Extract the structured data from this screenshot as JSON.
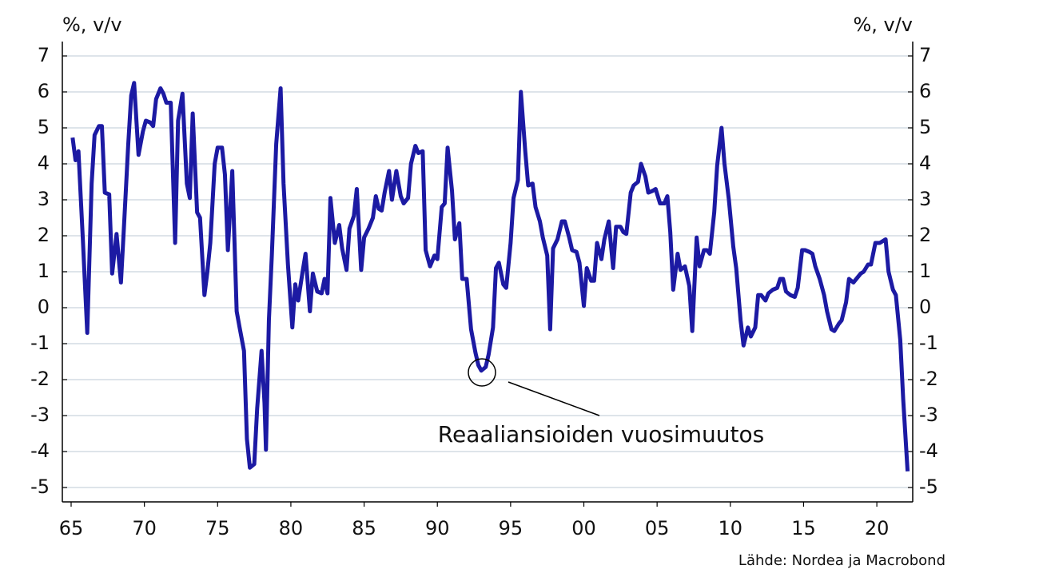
{
  "chart_data": {
    "type": "line",
    "y_label": "%, v/v",
    "y2_label": "%, v/v",
    "annotation": "Reaaliansioiden vuosimuutos",
    "source": "Lähde: Nordea ja Macrobond",
    "grid": true,
    "xlim": [
      1964.4,
      2022.45
    ],
    "ylim": [
      -5.4,
      7.4
    ],
    "y2lim": [
      -5.4,
      7.4
    ],
    "xticks": [
      {
        "value": 1965,
        "label": "65"
      },
      {
        "value": 1970,
        "label": "70"
      },
      {
        "value": 1975,
        "label": "75"
      },
      {
        "value": 1980,
        "label": "80"
      },
      {
        "value": 1985,
        "label": "85"
      },
      {
        "value": 1990,
        "label": "90"
      },
      {
        "value": 1995,
        "label": "95"
      },
      {
        "value": 2000,
        "label": "00"
      },
      {
        "value": 2005,
        "label": "05"
      },
      {
        "value": 2010,
        "label": "10"
      },
      {
        "value": 2015,
        "label": "15"
      },
      {
        "value": 2020,
        "label": "20"
      }
    ],
    "yticks": [
      -5,
      -4,
      -3,
      -2,
      -1,
      0,
      1,
      2,
      3,
      4,
      5,
      6,
      7
    ],
    "y2ticks": [
      -5,
      -4,
      -3,
      -2,
      -1,
      0,
      1,
      2,
      3,
      4,
      5,
      6,
      7
    ],
    "x": [
      1965.1,
      1965.3,
      1965.5,
      1965.8,
      1966.1,
      1966.4,
      1966.6,
      1966.9,
      1967.1,
      1967.3,
      1967.6,
      1967.8,
      1968.1,
      1968.4,
      1968.6,
      1968.9,
      1969.1,
      1969.3,
      1969.6,
      1969.9,
      1970.1,
      1970.4,
      1970.6,
      1970.8,
      1971.1,
      1971.3,
      1971.5,
      1971.8,
      1972.1,
      1972.3,
      1972.6,
      1972.9,
      1973.1,
      1973.3,
      1973.6,
      1973.8,
      1974.1,
      1974.3,
      1974.5,
      1974.8,
      1975.0,
      1975.3,
      1975.5,
      1975.7,
      1976.0,
      1976.3,
      1976.5,
      1976.8,
      1977.0,
      1977.2,
      1977.5,
      1977.7,
      1978.0,
      1978.2,
      1978.3,
      1978.5,
      1978.7,
      1979.0,
      1979.3,
      1979.5,
      1979.8,
      1980.1,
      1980.3,
      1980.5,
      1980.8,
      1981.0,
      1981.3,
      1981.5,
      1981.8,
      1982.1,
      1982.3,
      1982.5,
      1982.7,
      1983.0,
      1983.3,
      1983.5,
      1983.8,
      1984.0,
      1984.3,
      1984.5,
      1984.8,
      1985.0,
      1985.3,
      1985.6,
      1985.8,
      1986.0,
      1986.2,
      1986.4,
      1986.7,
      1986.9,
      1987.2,
      1987.5,
      1987.7,
      1988.0,
      1988.2,
      1988.5,
      1988.7,
      1989.0,
      1989.2,
      1989.5,
      1989.8,
      1990.0,
      1990.3,
      1990.5,
      1990.7,
      1991.0,
      1991.2,
      1991.5,
      1991.7,
      1992.0,
      1992.3,
      1992.6,
      1992.8,
      1993.0,
      1993.3,
      1993.5,
      1993.8,
      1994.0,
      1994.2,
      1994.5,
      1994.7,
      1995.0,
      1995.2,
      1995.5,
      1995.7,
      1996.0,
      1996.2,
      1996.5,
      1996.7,
      1997.0,
      1997.2,
      1997.5,
      1997.7,
      1997.9,
      1998.2,
      1998.5,
      1998.7,
      1999.0,
      1999.2,
      1999.5,
      1999.7,
      2000.0,
      2000.2,
      2000.5,
      2000.7,
      2000.9,
      2001.2,
      2001.4,
      2001.7,
      2002.0,
      2002.2,
      2002.5,
      2002.7,
      2002.9,
      2003.2,
      2003.4,
      2003.7,
      2003.9,
      2004.2,
      2004.4,
      2004.7,
      2004.9,
      2005.2,
      2005.5,
      2005.7,
      2005.9,
      2006.1,
      2006.4,
      2006.6,
      2006.9,
      2007.2,
      2007.4,
      2007.7,
      2007.9,
      2008.2,
      2008.4,
      2008.6,
      2008.9,
      2009.1,
      2009.4,
      2009.6,
      2009.9,
      2010.2,
      2010.4,
      2010.7,
      2010.9,
      2011.2,
      2011.4,
      2011.7,
      2011.9,
      2012.1,
      2012.4,
      2012.6,
      2012.9,
      2013.2,
      2013.4,
      2013.6,
      2013.8,
      2014.1,
      2014.4,
      2014.6,
      2014.9,
      2015.1,
      2015.4,
      2015.6,
      2015.8,
      2016.1,
      2016.4,
      2016.6,
      2016.9,
      2017.1,
      2017.4,
      2017.6,
      2017.9,
      2018.1,
      2018.4,
      2018.6,
      2018.9,
      2019.1,
      2019.4,
      2019.6,
      2019.9,
      2020.2,
      2020.4,
      2020.6,
      2020.8,
      2021.1,
      2021.3,
      2021.6,
      2021.8,
      2022.1
    ],
    "series": [
      {
        "color": "#1c1aa3",
        "values": [
          4.73,
          4.1,
          4.35,
          1.9,
          -0.7,
          3.45,
          4.8,
          5.05,
          5.05,
          3.2,
          3.15,
          0.95,
          2.05,
          0.7,
          2.2,
          4.55,
          5.9,
          6.25,
          4.25,
          4.9,
          5.2,
          5.15,
          5.05,
          5.8,
          6.1,
          5.95,
          5.7,
          5.7,
          1.8,
          5.2,
          5.95,
          3.45,
          3.05,
          5.4,
          2.65,
          2.5,
          0.35,
          1.0,
          1.8,
          4.0,
          4.45,
          4.45,
          3.7,
          1.6,
          3.8,
          -0.1,
          -0.55,
          -1.2,
          -3.65,
          -4.45,
          -4.35,
          -2.8,
          -1.2,
          -2.65,
          -3.95,
          -0.35,
          1.45,
          4.55,
          6.1,
          3.45,
          1.2,
          -0.55,
          0.65,
          0.2,
          1.0,
          1.5,
          -0.1,
          0.95,
          0.45,
          0.4,
          0.8,
          0.4,
          3.05,
          1.8,
          2.3,
          1.65,
          1.05,
          2.2,
          2.55,
          3.3,
          1.05,
          1.95,
          2.2,
          2.5,
          3.1,
          2.75,
          2.7,
          3.2,
          3.8,
          3.0,
          3.8,
          3.1,
          2.9,
          3.05,
          4.0,
          4.5,
          4.3,
          4.35,
          1.6,
          1.15,
          1.45,
          1.35,
          2.8,
          2.9,
          4.45,
          3.25,
          1.9,
          2.35,
          0.8,
          0.8,
          -0.6,
          -1.25,
          -1.6,
          -1.75,
          -1.65,
          -1.3,
          -0.55,
          1.1,
          1.25,
          0.65,
          0.55,
          1.8,
          3.05,
          3.55,
          6.0,
          4.35,
          3.4,
          3.45,
          2.8,
          2.4,
          1.95,
          1.45,
          -0.6,
          1.65,
          1.9,
          2.4,
          2.4,
          1.95,
          1.6,
          1.55,
          1.25,
          0.05,
          1.1,
          0.75,
          0.75,
          1.8,
          1.35,
          1.9,
          2.4,
          1.1,
          2.25,
          2.25,
          2.1,
          2.05,
          3.2,
          3.4,
          3.5,
          4.0,
          3.65,
          3.2,
          3.25,
          3.3,
          2.9,
          2.9,
          3.1,
          2.1,
          0.5,
          1.5,
          1.05,
          1.15,
          0.6,
          -0.65,
          1.95,
          1.15,
          1.6,
          1.6,
          1.5,
          2.65,
          3.95,
          5.0,
          4.0,
          3.0,
          1.7,
          1.1,
          -0.35,
          -1.05,
          -0.55,
          -0.8,
          -0.55,
          0.35,
          0.35,
          0.2,
          0.4,
          0.5,
          0.55,
          0.8,
          0.8,
          0.45,
          0.35,
          0.3,
          0.55,
          1.6,
          1.6,
          1.55,
          1.5,
          1.15,
          0.8,
          0.35,
          -0.1,
          -0.6,
          -0.65,
          -0.45,
          -0.35,
          0.15,
          0.8,
          0.7,
          0.8,
          0.95,
          1.0,
          1.2,
          1.2,
          1.8,
          1.8,
          1.85,
          1.9,
          1.0,
          0.5,
          0.35,
          -0.9,
          -2.55,
          -4.55
        ]
      }
    ]
  }
}
